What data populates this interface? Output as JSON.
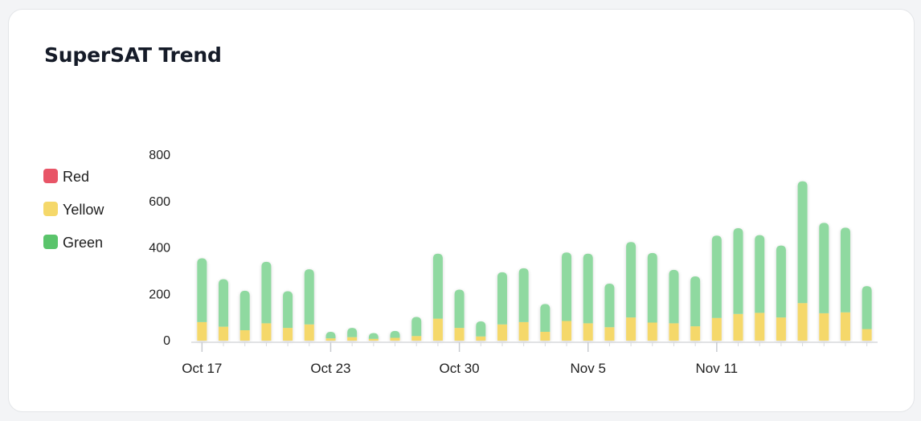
{
  "card": {
    "title": "SuperSAT Trend"
  },
  "legend": {
    "items": [
      {
        "label": "Red",
        "color": "#e85567"
      },
      {
        "label": "Yellow",
        "color": "#f5d86a"
      },
      {
        "label": "Green",
        "color": "#5ac46b"
      }
    ]
  },
  "chart_data": {
    "type": "bar",
    "stacked": true,
    "title": "SuperSAT Trend",
    "xlabel": "",
    "ylabel": "",
    "ylim": [
      0,
      800
    ],
    "yticks": [
      "800",
      "600",
      "400",
      "200",
      "0"
    ],
    "ytick_values": [
      800,
      600,
      400,
      200,
      0
    ],
    "xtick_labels": [
      {
        "label": "Oct 17",
        "index": 0
      },
      {
        "label": "Oct 23",
        "index": 6
      },
      {
        "label": "Oct 30",
        "index": 12
      },
      {
        "label": "Nov 5",
        "index": 18
      },
      {
        "label": "Nov 11",
        "index": 24
      }
    ],
    "legend_position": "left",
    "grid": false,
    "series": [
      {
        "name": "Red",
        "color": "#e85567",
        "values": [
          0,
          0,
          0,
          0,
          0,
          0,
          0,
          0,
          0,
          0,
          0,
          0,
          0,
          0,
          0,
          0,
          0,
          0,
          0,
          0,
          0,
          0,
          0,
          0,
          0,
          0,
          0,
          0,
          0,
          0,
          0,
          0
        ]
      },
      {
        "name": "Yellow",
        "color": "#f5d86a",
        "values": [
          80,
          60,
          45,
          75,
          55,
          70,
          10,
          15,
          8,
          12,
          20,
          95,
          55,
          18,
          70,
          80,
          38,
          85,
          75,
          58,
          100,
          78,
          75,
          62,
          98,
          115,
          120,
          100,
          162,
          118,
          122,
          50
        ]
      },
      {
        "name": "Green",
        "color": "#8fd9a0",
        "values": [
          275,
          205,
          170,
          265,
          158,
          238,
          28,
          40,
          25,
          30,
          82,
          280,
          165,
          65,
          225,
          232,
          120,
          295,
          300,
          188,
          325,
          300,
          230,
          215,
          355,
          370,
          335,
          310,
          525,
          390,
          365,
          185
        ]
      }
    ]
  }
}
